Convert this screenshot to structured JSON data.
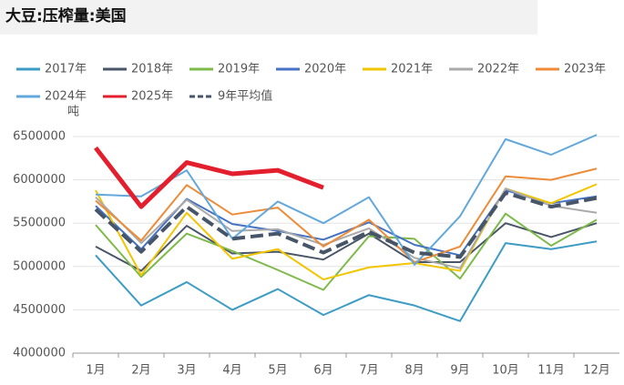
{
  "chart_data": {
    "type": "line",
    "title": "大豆:压榨量:美国",
    "y_label": "吨",
    "categories": [
      "1月",
      "2月",
      "3月",
      "4月",
      "5月",
      "6月",
      "7月",
      "8月",
      "9月",
      "10月",
      "11月",
      "12月"
    ],
    "ylim": [
      4000000,
      6600000
    ],
    "yticks": [
      4000000,
      4500000,
      5000000,
      5500000,
      6000000,
      6500000
    ],
    "grid": true,
    "legend": "top",
    "series": [
      {
        "name": "2017年",
        "color": "#3d9cc6",
        "line_width": 2,
        "values": [
          5130000,
          4550000,
          4820000,
          4500000,
          4740000,
          4440000,
          4670000,
          4550000,
          4370000,
          5270000,
          5200000,
          5290000
        ]
      },
      {
        "name": "2018年",
        "color": "#4a5568",
        "line_width": 2,
        "values": [
          5230000,
          4950000,
          5470000,
          5150000,
          5170000,
          5080000,
          5380000,
          5050000,
          5050000,
          5500000,
          5340000,
          5500000
        ]
      },
      {
        "name": "2019年",
        "color": "#7dba4a",
        "line_width": 2,
        "values": [
          5480000,
          4880000,
          5380000,
          5180000,
          4960000,
          4730000,
          5350000,
          5320000,
          4860000,
          5610000,
          5240000,
          5540000
        ]
      },
      {
        "name": "2020年",
        "color": "#4472c4",
        "line_width": 2,
        "values": [
          5700000,
          5200000,
          5780000,
          5490000,
          5410000,
          5310000,
          5510000,
          5250000,
          5130000,
          5880000,
          5730000,
          5810000
        ]
      },
      {
        "name": "2021年",
        "color": "#f2c500",
        "line_width": 2,
        "values": [
          5880000,
          4900000,
          5620000,
          5090000,
          5200000,
          4850000,
          4990000,
          5040000,
          4950000,
          5900000,
          5730000,
          5950000
        ]
      },
      {
        "name": "2022年",
        "color": "#aaaaaa",
        "line_width": 2,
        "values": [
          5800000,
          5270000,
          5770000,
          5410000,
          5430000,
          5250000,
          5440000,
          5100000,
          4980000,
          5900000,
          5700000,
          5620000
        ]
      },
      {
        "name": "2023年",
        "color": "#ed8b38",
        "line_width": 2,
        "values": [
          5760000,
          5300000,
          5940000,
          5600000,
          5680000,
          5230000,
          5540000,
          5050000,
          5230000,
          6040000,
          6000000,
          6130000
        ]
      },
      {
        "name": "2024年",
        "color": "#62a8dc",
        "line_width": 2,
        "values": [
          5830000,
          5810000,
          6110000,
          5320000,
          5750000,
          5500000,
          5800000,
          5020000,
          5580000,
          6470000,
          6290000,
          6520000
        ]
      },
      {
        "name": "2025年",
        "color": "#e31e2d",
        "line_width": 5,
        "values": [
          6370000,
          5690000,
          6200000,
          6070000,
          6110000,
          5910000,
          null,
          null,
          null,
          null,
          null,
          null
        ]
      },
      {
        "name": "9年平均值",
        "color": "#475569",
        "line_width": 4,
        "dashed": true,
        "values": [
          5660000,
          5170000,
          5690000,
          5320000,
          5380000,
          5160000,
          5400000,
          5160000,
          5110000,
          5850000,
          5690000,
          5790000
        ]
      }
    ]
  }
}
